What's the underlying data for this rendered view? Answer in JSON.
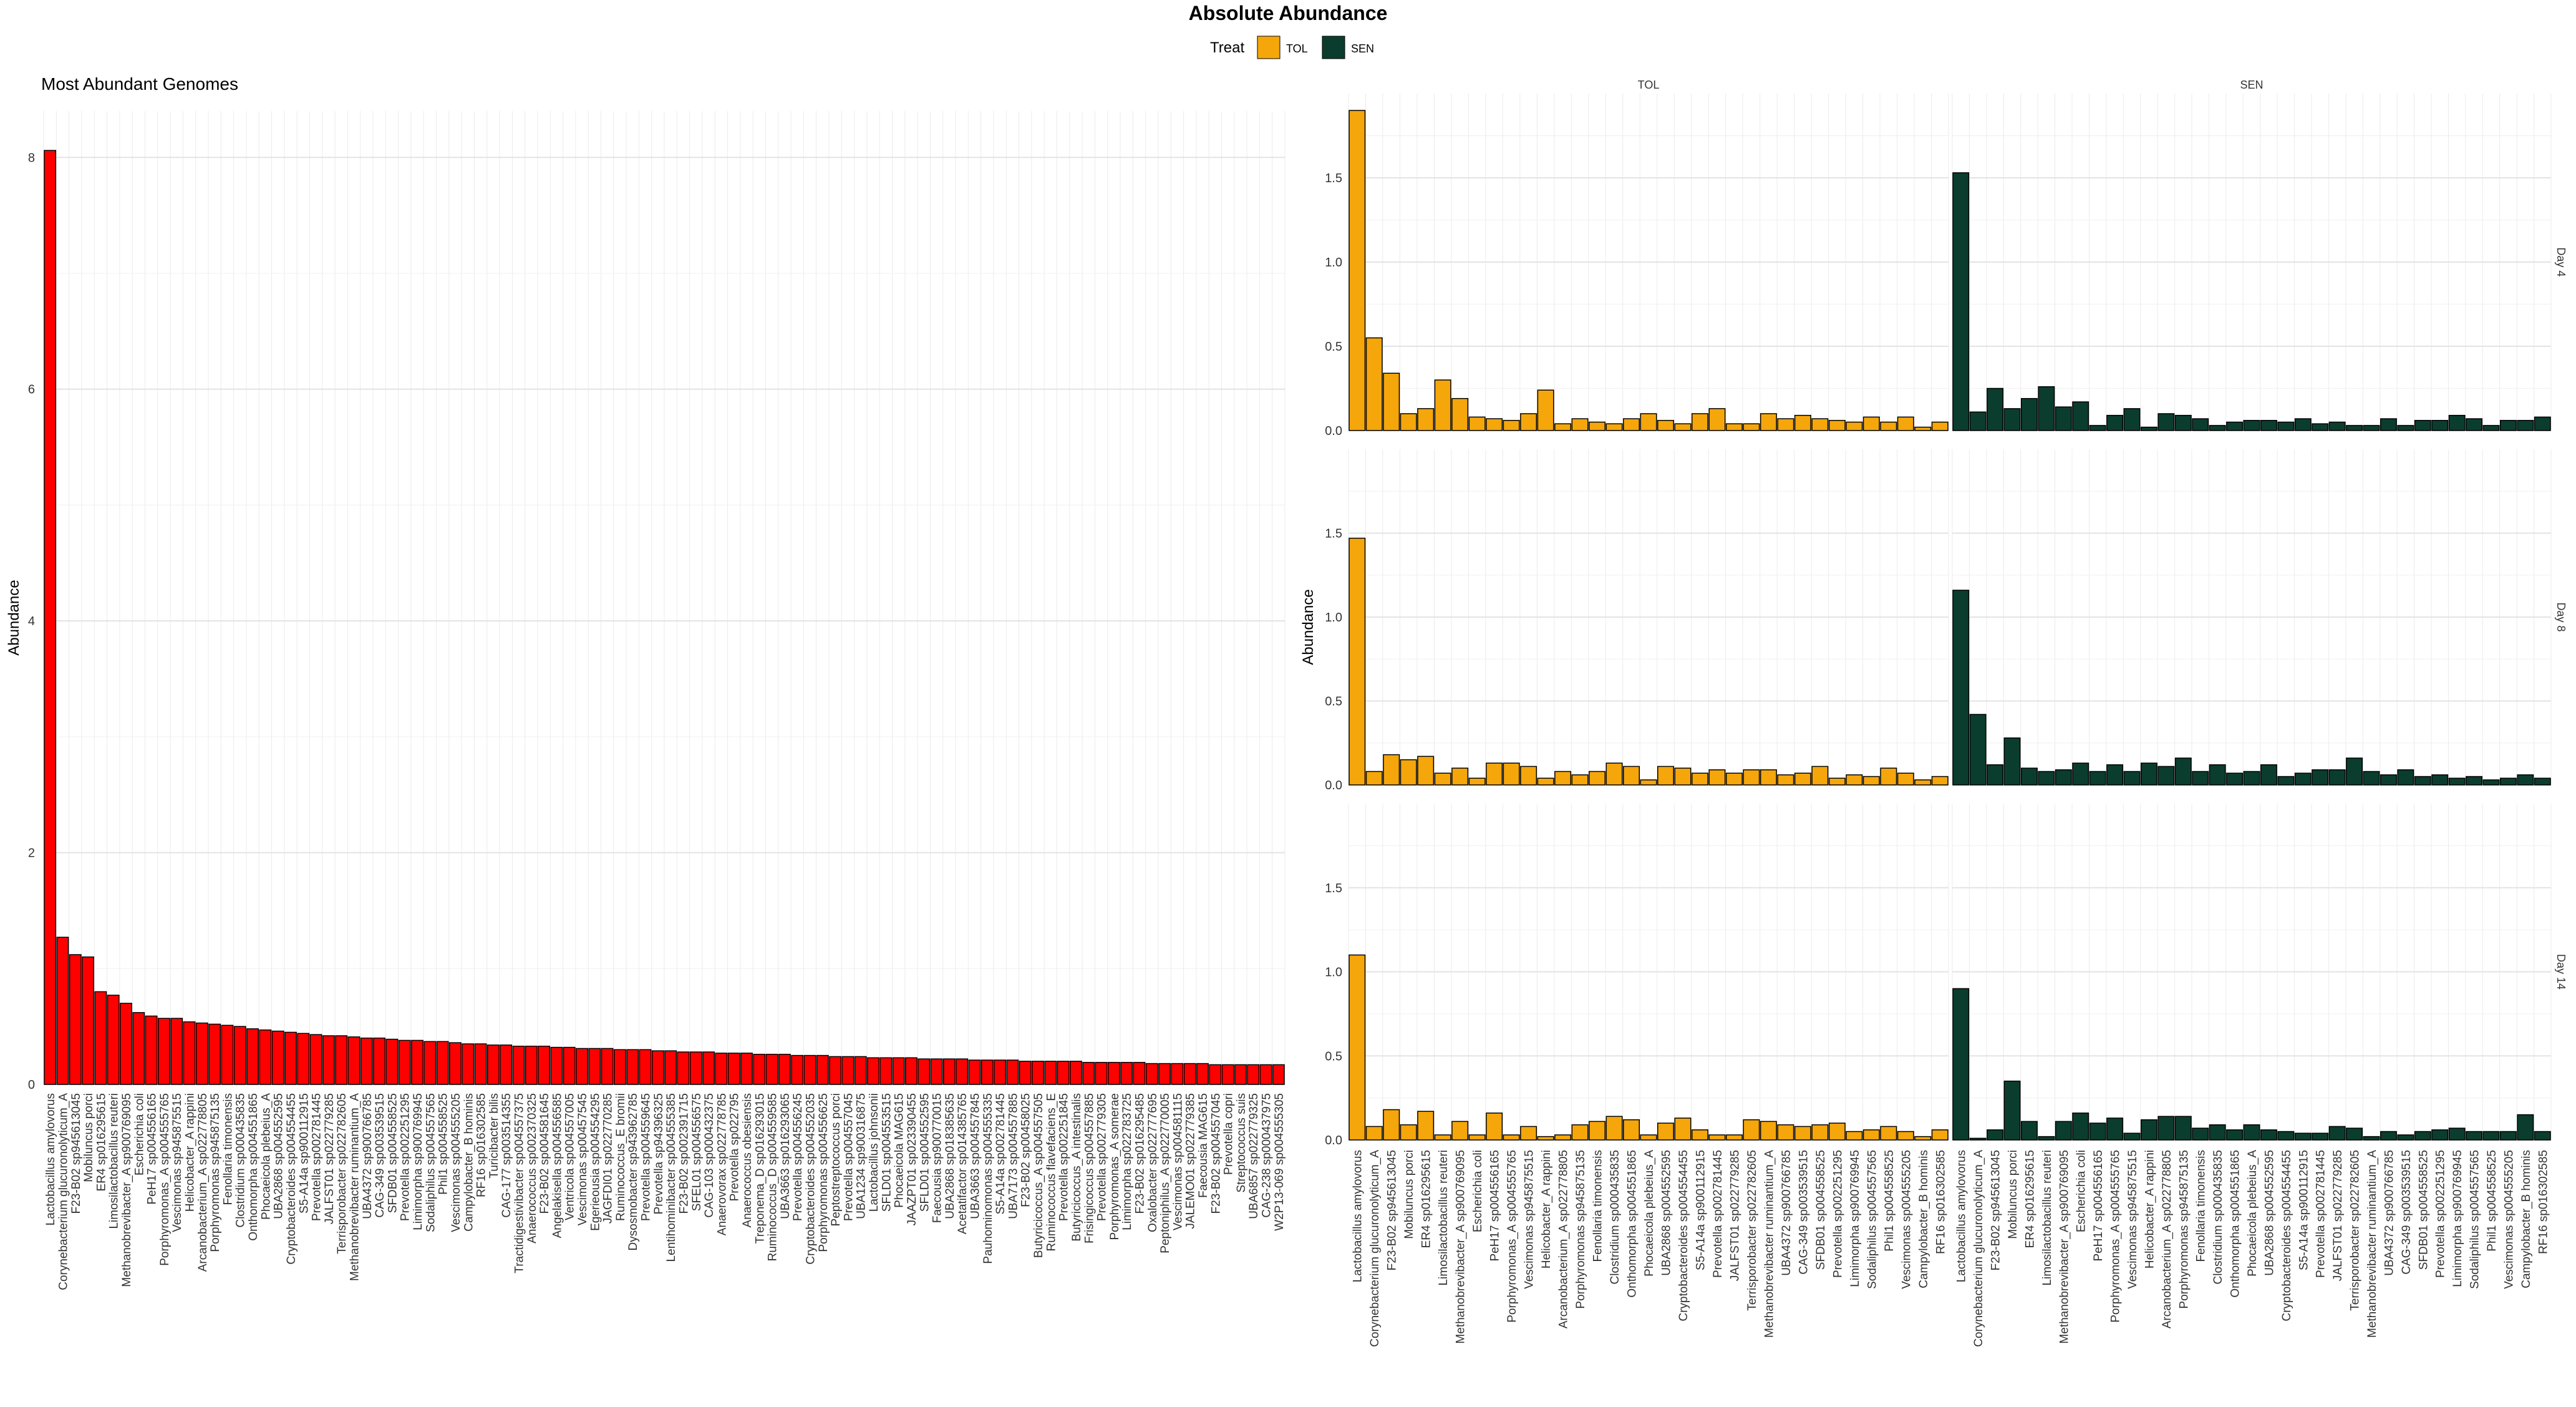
{
  "figure": {
    "title": "Absolute Abundance",
    "legend": {
      "title": "Treat",
      "items": [
        {
          "label": "TOL",
          "color": "#F5A60A"
        },
        {
          "label": "SEN",
          "color": "#0B3D2E"
        }
      ]
    }
  },
  "chart_data": [
    {
      "type": "bar",
      "title": "Most Abundant Genomes",
      "xlabel": "",
      "ylabel": "Abundance",
      "ylim": [
        0,
        8.4
      ],
      "yticks": [
        "0",
        "2",
        "4",
        "6",
        "8"
      ],
      "grid": true,
      "bar_color": "#FF0000",
      "categories": [
        "Lactobacillus amylovorus",
        "Corynebacterium glucuronolyticum_A",
        "F23-B02 sp945613045",
        "Mobiluncus porci",
        "ER4 sp016295615",
        "Limosilactobacillus reuteri",
        "Methanobrevibacter_A sp900769095",
        "Escherichia coli",
        "PeH17 sp004556165",
        "Porphyromonas_A sp004555765",
        "Vescimonas sp945875515",
        "Helicobacter_A rappini",
        "Arcanobacterium_A sp022778805",
        "Porphyromonas sp945875135",
        "Fenollaria timonensis",
        "Clostridium sp000435835",
        "Onthomorpha sp004551865",
        "Phocaeicola plebeius_A",
        "UBA2868 sp004552595",
        "Cryptobacteroides sp004554455",
        "S5-A14a sp900112915",
        "Prevotella sp002781445",
        "JALFST01 sp022779285",
        "Terrisporobacter sp022782605",
        "Methanobrevibacter ruminantium_A",
        "UBA4372 sp900766785",
        "CAG-349 sp003539515",
        "SFDB01 sp004558525",
        "Prevotella sp002251295",
        "Limimorpha sp900769945",
        "Sodaliphilus sp004557565",
        "Phil1 sp004558525",
        "Vescimonas sp004555205",
        "Campylobacter_B hominis",
        "RF16 sp016302585",
        "Turicibacter bilis",
        "CAG-177 sp003514355",
        "Tractidigestivibacter sp004557375",
        "Anaerococcus sp002370325",
        "F23-B02 sp004581645",
        "Angelakisella sp004556585",
        "Ventricola sp004557005",
        "Vescimonas sp00457545",
        "Egerieousia sp004554295",
        "JAGFDI01 sp022770285",
        "Ruminococcus_E bromii",
        "Dysosmobacter sp943962785",
        "Prevotella sp004559645",
        "Prevotella sp94396325",
        "Lentihominibacter sp004555385",
        "F23-B02 sp002391715",
        "SFEL01 sp004556575",
        "CAG-103 sp000432375",
        "Anaerovorax sp022778785",
        "Prevotella sp022795",
        "Anaerococcus obesiensis",
        "Treponema_D sp016293015",
        "Ruminococcus_D sp004559585",
        "UBA3663 sp016293065",
        "Prevotella sp004556245",
        "Cryptobacteroides sp004552035",
        "Porphyromonas sp004556625",
        "Peptostreptococcus porci",
        "Prevotella sp004557045",
        "UBA1234 sp900316875",
        "Lactobacillus johnsonii",
        "SFLD01 sp004553515",
        "Phocaeicola MAG615",
        "JAAZPT01 sp023390455",
        "SFLD01 sp004552595",
        "Faecousia sp900770015",
        "UBA2868 sp018385635",
        "Acetatifactor sp014385765",
        "UBA3663 sp004557845",
        "Pauhominomonas sp004555335",
        "S5-A14a sp002781445",
        "UBA7173 sp004557885",
        "F23-B02 sp00458025",
        "Butyricicoccus_A sp004557505",
        "Ruminococcus flavefaciens_E",
        "Prevotella sp002251845",
        "Butyricicoccus_A intestinalis",
        "Frisingicoccus sp004557885",
        "Prevotella sp002779305",
        "Porphyromonas_A somerae",
        "Limimorpha sp022783725",
        "F23-B02 sp016295485",
        "Oxalobacter sp022777695",
        "Peptoniphilus_A sp022770005",
        "Vescimonas sp004581115",
        "JALEMO01 sp022779385",
        "Faecousia MAG615",
        "F23-B02 sp004557045",
        "Prevotella copri",
        "Streptococcus suis",
        "UBA6857 sp022779325",
        "CAG-238 sp000437975",
        "W2P13-069 sp004555305"
      ],
      "values": [
        8.06,
        1.27,
        1.12,
        1.1,
        0.8,
        0.77,
        0.7,
        0.62,
        0.59,
        0.57,
        0.57,
        0.54,
        0.53,
        0.52,
        0.51,
        0.5,
        0.48,
        0.47,
        0.46,
        0.45,
        0.44,
        0.43,
        0.42,
        0.42,
        0.41,
        0.4,
        0.4,
        0.39,
        0.38,
        0.38,
        0.37,
        0.37,
        0.36,
        0.35,
        0.35,
        0.34,
        0.34,
        0.33,
        0.33,
        0.33,
        0.32,
        0.32,
        0.31,
        0.31,
        0.31,
        0.3,
        0.3,
        0.3,
        0.29,
        0.29,
        0.28,
        0.28,
        0.28,
        0.27,
        0.27,
        0.27,
        0.26,
        0.26,
        0.26,
        0.25,
        0.25,
        0.25,
        0.24,
        0.24,
        0.24,
        0.23,
        0.23,
        0.23,
        0.23,
        0.22,
        0.22,
        0.22,
        0.22,
        0.21,
        0.21,
        0.21,
        0.21,
        0.2,
        0.2,
        0.2,
        0.2,
        0.2,
        0.19,
        0.19,
        0.19,
        0.19,
        0.19,
        0.18,
        0.18,
        0.18,
        0.18,
        0.18,
        0.17,
        0.17,
        0.17,
        0.17,
        0.17,
        0.17
      ]
    },
    {
      "type": "bar",
      "facet": true,
      "xlabel": "",
      "ylabel": "Abundance",
      "ylim": [
        0,
        2.0
      ],
      "yticks": [
        "0.0",
        "0.5",
        "1.0",
        "1.5"
      ],
      "grid": true,
      "columns": [
        "TOL",
        "SEN"
      ],
      "rows": [
        "Day 4",
        "Day 8",
        "Day 14"
      ],
      "categories": [
        "Lactobacillus amylovorus",
        "Corynebacterium glucuronolyticum_A",
        "F23-B02 sp945613045",
        "Mobiluncus porci",
        "ER4 sp016295615",
        "Limosilactobacillus reuteri",
        "Methanobrevibacter_A sp900769095",
        "Escherichia coli",
        "PeH17 sp004556165",
        "Porphyromonas_A sp004555765",
        "Vescimonas sp945875515",
        "Helicobacter_A rappini",
        "Arcanobacterium_A sp022778805",
        "Porphyromonas sp945875135",
        "Fenollaria timonensis",
        "Clostridium sp000435835",
        "Onthomorpha sp004551865",
        "Phocaeicola plebeius_A",
        "UBA2868 sp004552595",
        "Cryptobacteroides sp004554455",
        "S5-A14a sp900112915",
        "Prevotella sp002781445",
        "JALFST01 sp022779285",
        "Terrisporobacter sp022782605",
        "Methanobrevibacter ruminantium_A",
        "UBA4372 sp900766785",
        "CAG-349 sp003539515",
        "SFDB01 sp004558525",
        "Prevotella sp002251295",
        "Limimorpha sp900769945",
        "Sodaliphilus sp004557565",
        "Phil1 sp004558525",
        "Vescimonas sp004555205",
        "Campylobacter_B hominis",
        "RF16 sp016302585"
      ],
      "series": [
        {
          "column": "TOL",
          "row": "Day 4",
          "values": [
            1.9,
            0.55,
            0.34,
            0.1,
            0.13,
            0.3,
            0.19,
            0.08,
            0.07,
            0.06,
            0.1,
            0.24,
            0.04,
            0.07,
            0.05,
            0.04,
            0.07,
            0.1,
            0.06,
            0.04,
            0.1,
            0.13,
            0.04,
            0.04,
            0.1,
            0.07,
            0.09,
            0.07,
            0.06,
            0.05,
            0.08,
            0.05,
            0.08,
            0.02,
            0.05
          ]
        },
        {
          "column": "SEN",
          "row": "Day 4",
          "values": [
            1.53,
            0.11,
            0.25,
            0.13,
            0.19,
            0.26,
            0.14,
            0.17,
            0.03,
            0.09,
            0.13,
            0.02,
            0.1,
            0.09,
            0.07,
            0.03,
            0.05,
            0.06,
            0.06,
            0.05,
            0.07,
            0.04,
            0.05,
            0.03,
            0.03,
            0.07,
            0.03,
            0.06,
            0.06,
            0.09,
            0.07,
            0.03,
            0.06,
            0.06,
            0.08
          ]
        },
        {
          "column": "TOL",
          "row": "Day 8",
          "values": [
            1.47,
            0.08,
            0.18,
            0.15,
            0.17,
            0.07,
            0.1,
            0.04,
            0.13,
            0.13,
            0.11,
            0.04,
            0.08,
            0.06,
            0.08,
            0.13,
            0.11,
            0.03,
            0.11,
            0.1,
            0.07,
            0.09,
            0.07,
            0.09,
            0.09,
            0.06,
            0.07,
            0.11,
            0.04,
            0.06,
            0.05,
            0.1,
            0.07,
            0.03,
            0.05
          ]
        },
        {
          "column": "SEN",
          "row": "Day 8",
          "values": [
            1.16,
            0.42,
            0.12,
            0.28,
            0.1,
            0.08,
            0.09,
            0.13,
            0.08,
            0.12,
            0.08,
            0.13,
            0.11,
            0.16,
            0.08,
            0.12,
            0.07,
            0.08,
            0.12,
            0.05,
            0.07,
            0.09,
            0.09,
            0.16,
            0.08,
            0.06,
            0.09,
            0.05,
            0.06,
            0.04,
            0.05,
            0.03,
            0.04,
            0.06,
            0.04
          ]
        },
        {
          "column": "TOL",
          "row": "Day 14",
          "values": [
            1.1,
            0.08,
            0.18,
            0.09,
            0.17,
            0.03,
            0.11,
            0.03,
            0.16,
            0.03,
            0.08,
            0.02,
            0.03,
            0.09,
            0.11,
            0.14,
            0.12,
            0.03,
            0.1,
            0.13,
            0.06,
            0.03,
            0.03,
            0.12,
            0.11,
            0.09,
            0.08,
            0.09,
            0.1,
            0.05,
            0.06,
            0.08,
            0.05,
            0.02,
            0.06
          ]
        },
        {
          "column": "SEN",
          "row": "Day 14",
          "values": [
            0.9,
            0.01,
            0.06,
            0.35,
            0.11,
            0.02,
            0.11,
            0.16,
            0.1,
            0.13,
            0.04,
            0.12,
            0.14,
            0.14,
            0.07,
            0.09,
            0.06,
            0.09,
            0.06,
            0.05,
            0.04,
            0.04,
            0.08,
            0.07,
            0.02,
            0.05,
            0.03,
            0.05,
            0.06,
            0.07,
            0.05,
            0.05,
            0.05,
            0.15,
            0.05
          ]
        }
      ]
    }
  ]
}
